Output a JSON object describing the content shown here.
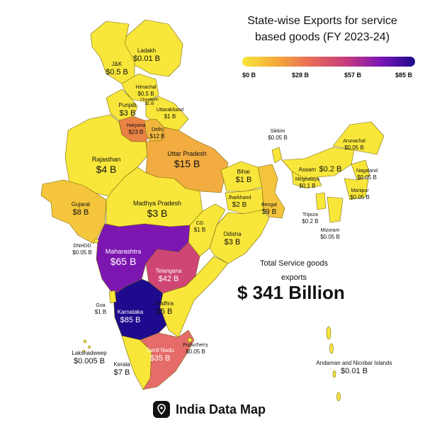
{
  "title": "State-wise Exports for service based goods (FY 2023-24)",
  "legend": {
    "ticks": [
      "$0 B",
      "$28 B",
      "$57 B",
      "$85 B"
    ],
    "colors": [
      "#f8e63a",
      "#f4a93a",
      "#e86a5a",
      "#c73c7c",
      "#7b15b5",
      "#1d0a8c"
    ]
  },
  "total": {
    "label": "Total Service goods exports",
    "value": "$ 341 Billion"
  },
  "brand": {
    "name": "India Data Map",
    "icon": "location-pin-icon"
  },
  "states": [
    {
      "id": "ladakh",
      "name": "Ladakh",
      "value": "$0.01 B",
      "color": "#f8e63a"
    },
    {
      "id": "jk",
      "name": "J&K",
      "value": "$0.5 B",
      "color": "#f8e63a"
    },
    {
      "id": "himachal",
      "name": "Himachal",
      "value": "$0.5 B",
      "color": "#f8e63a"
    },
    {
      "id": "chandigarh",
      "name": "Chandigarh",
      "value": "$1 B",
      "color": "#f8e63a"
    },
    {
      "id": "punjab",
      "name": "Punjab",
      "value": "$3 B",
      "color": "#f8e63a"
    },
    {
      "id": "uttarakhand",
      "name": "Uttarakhand",
      "value": "$1 B",
      "color": "#f8e63a"
    },
    {
      "id": "haryana",
      "name": "Haryana",
      "value": "$23 B",
      "color": "#e98245"
    },
    {
      "id": "delhi",
      "name": "Delhi",
      "value": "$12 B",
      "color": "#f1b63e"
    },
    {
      "id": "rajasthan",
      "name": "Rajasthan",
      "value": "$4 B",
      "color": "#f8e63a"
    },
    {
      "id": "uttar-pradesh",
      "name": "Uttar Pradesh",
      "value": "$15 B",
      "color": "#f2ac3f"
    },
    {
      "id": "sikkim",
      "name": "Sikkim",
      "value": "$0.05 B",
      "color": "#f8e63a"
    },
    {
      "id": "arunachal",
      "name": "Arunachal",
      "value": "$0.05 B",
      "color": "#f8e63a"
    },
    {
      "id": "assam",
      "name": "Assam",
      "value": "$0.2 B",
      "color": "#f8e63a"
    },
    {
      "id": "nagaland",
      "name": "Nagaland",
      "value": "$0.05 B",
      "color": "#f8e63a"
    },
    {
      "id": "meghalaya",
      "name": "Meghalaya",
      "value": "$0.1 B",
      "color": "#f8e63a"
    },
    {
      "id": "manipur",
      "name": "Manipur",
      "value": "$0.05 B",
      "color": "#f8e63a"
    },
    {
      "id": "tripura",
      "name": "Tripura",
      "value": "$0.2 B",
      "color": "#f8e63a"
    },
    {
      "id": "mizoram",
      "name": "Mizoram",
      "value": "$0.05 B",
      "color": "#f8e63a"
    },
    {
      "id": "bihar",
      "name": "Bihar",
      "value": "$1 B",
      "color": "#f8e63a"
    },
    {
      "id": "jharkhand",
      "name": "Jharkhand",
      "value": "$2 B",
      "color": "#f8e63a"
    },
    {
      "id": "bengal",
      "name": "Bengal",
      "value": "$9 B",
      "color": "#f4c53c"
    },
    {
      "id": "gujarat",
      "name": "Gujarat",
      "value": "$8 B",
      "color": "#f5c63c"
    },
    {
      "id": "madhya-pradesh",
      "name": "Madhya Pradesh",
      "value": "$3 B",
      "color": "#f8e63a"
    },
    {
      "id": "chhattisgarh",
      "name": "CG",
      "value": "$1 B",
      "color": "#f8e63a"
    },
    {
      "id": "odisha",
      "name": "Odisha",
      "value": "$3 B",
      "color": "#f8e63a"
    },
    {
      "id": "dnhdd",
      "name": "DNHDD",
      "value": "$0.05 B",
      "color": "#f8e63a"
    },
    {
      "id": "maharashtra",
      "name": "Maharashtra",
      "value": "$65 B",
      "color": "#7d16b1"
    },
    {
      "id": "telangana",
      "name": "Telangana",
      "value": "$42 B",
      "color": "#cf4675"
    },
    {
      "id": "goa",
      "name": "Goa",
      "value": "$1 B",
      "color": "#f8e63a"
    },
    {
      "id": "karnataka",
      "name": "Karnataka",
      "value": "$85 B",
      "color": "#1d0a8c"
    },
    {
      "id": "andhra",
      "name": "Andhra",
      "value": "$5 B",
      "color": "#f8e63a"
    },
    {
      "id": "lakshadweep",
      "name": "Lakshadweep",
      "value": "$0.005 B",
      "color": "#f8e63a"
    },
    {
      "id": "puducherry",
      "name": "Puducherry",
      "value": "$0.05 B",
      "color": "#f8e63a"
    },
    {
      "id": "tamil-nadu",
      "name": "Tamil Nadu",
      "value": "$35 B",
      "color": "#e56c68"
    },
    {
      "id": "kerala",
      "name": "Kerala",
      "value": "$7 B",
      "color": "#f8e63a"
    },
    {
      "id": "andaman",
      "name": "Andaman and Nicobar Islands",
      "value": "$0.01 B",
      "color": "#f8e63a"
    }
  ]
}
